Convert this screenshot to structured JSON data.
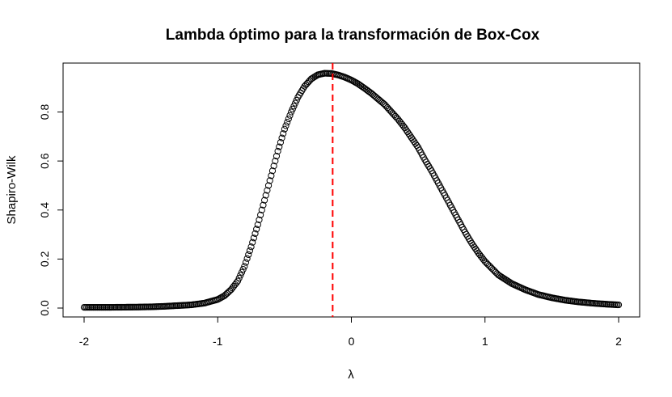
{
  "chart_data": {
    "type": "scatter",
    "title": "Lambda óptimo para la transformación de Box-Cox",
    "xlabel": "λ",
    "ylabel": "Shapiro-Wilk",
    "xlim": [
      -2,
      2
    ],
    "ylim": [
      0,
      0.96
    ],
    "x_ticks": [
      -2,
      -1,
      0,
      1,
      2
    ],
    "x_tick_labels": [
      "-2",
      "-1",
      "0",
      "1",
      "2"
    ],
    "y_ticks": [
      0.0,
      0.2,
      0.4,
      0.6,
      0.8
    ],
    "y_tick_labels": [
      "0.0",
      "0.2",
      "0.4",
      "0.6",
      "0.8"
    ],
    "grid": false,
    "series": [
      {
        "x": [
          -2.0,
          -1.8,
          -1.6,
          -1.5,
          -1.4,
          -1.3,
          -1.2,
          -1.1,
          -1.0,
          -0.95,
          -0.9,
          -0.85,
          -0.8,
          -0.75,
          -0.7,
          -0.65,
          -0.6,
          -0.55,
          -0.5,
          -0.45,
          -0.4,
          -0.35,
          -0.3,
          -0.25,
          -0.2,
          -0.15,
          -0.1,
          -0.05,
          0.0,
          0.05,
          0.1,
          0.15,
          0.2,
          0.25,
          0.3,
          0.35,
          0.4,
          0.45,
          0.5,
          0.55,
          0.6,
          0.65,
          0.7,
          0.75,
          0.8,
          0.85,
          0.9,
          0.95,
          1.0,
          1.1,
          1.2,
          1.3,
          1.4,
          1.5,
          1.6,
          1.7,
          1.8,
          1.9,
          2.0
        ],
        "y": [
          0.003,
          0.003,
          0.004,
          0.005,
          0.007,
          0.01,
          0.013,
          0.02,
          0.035,
          0.05,
          0.075,
          0.11,
          0.17,
          0.25,
          0.34,
          0.44,
          0.54,
          0.64,
          0.73,
          0.8,
          0.86,
          0.905,
          0.935,
          0.952,
          0.958,
          0.957,
          0.951,
          0.942,
          0.93,
          0.915,
          0.896,
          0.876,
          0.853,
          0.83,
          0.8,
          0.77,
          0.735,
          0.695,
          0.655,
          0.605,
          0.56,
          0.51,
          0.46,
          0.41,
          0.36,
          0.31,
          0.265,
          0.225,
          0.19,
          0.135,
          0.1,
          0.075,
          0.055,
          0.042,
          0.032,
          0.025,
          0.02,
          0.016,
          0.013
        ]
      }
    ],
    "vline": {
      "x": -0.14,
      "color": "#ff0000",
      "style": "dashed"
    },
    "colors": {
      "points": "#000000",
      "vline": "#ff0000"
    }
  }
}
